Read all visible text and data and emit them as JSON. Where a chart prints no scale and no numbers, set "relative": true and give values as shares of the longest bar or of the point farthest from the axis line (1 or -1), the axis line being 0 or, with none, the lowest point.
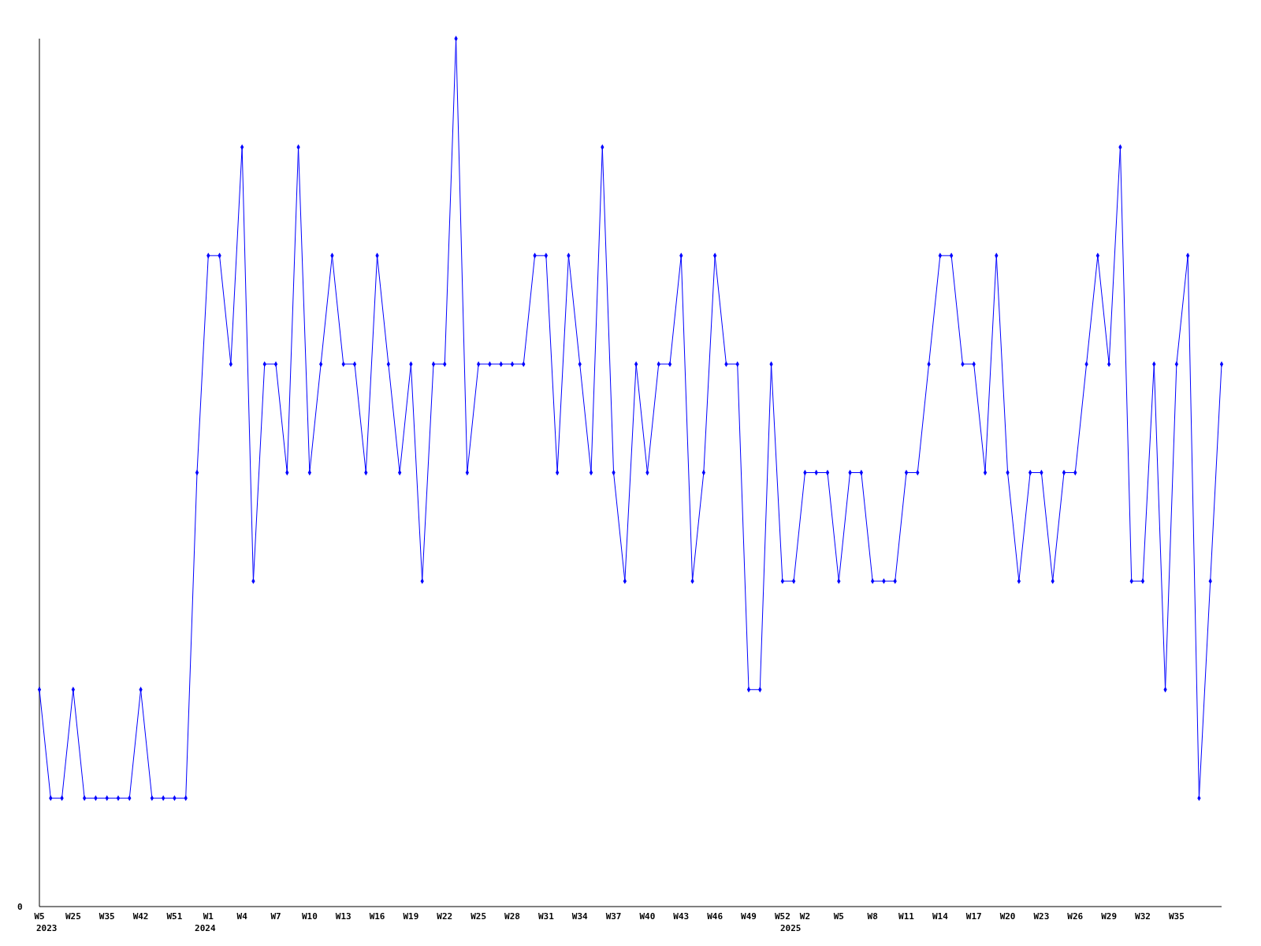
{
  "chart_data": {
    "type": "line",
    "relative": true,
    "marker": "diamond",
    "grid": false,
    "annotations": [
      "0",
      "2023",
      "2024",
      "2025"
    ],
    "categories": [
      "W5",
      null,
      null,
      "W25",
      null,
      null,
      "W35",
      null,
      null,
      "W42",
      null,
      null,
      "W51",
      null,
      null,
      "W1",
      null,
      null,
      "W4",
      null,
      null,
      "W7",
      null,
      null,
      "W10",
      null,
      null,
      "W13",
      null,
      null,
      "W16",
      null,
      null,
      "W19",
      null,
      null,
      "W22",
      null,
      null,
      "W25",
      null,
      null,
      "W28",
      null,
      null,
      "W31",
      null,
      null,
      "W34",
      null,
      null,
      "W37",
      null,
      null,
      "W40",
      null,
      null,
      "W43",
      null,
      null,
      "W46",
      null,
      null,
      "W49",
      null,
      null,
      "W52",
      null,
      "W2",
      null,
      null,
      "W5",
      null,
      null,
      "W8",
      null,
      null,
      "W11",
      null,
      null,
      "W14",
      null,
      null,
      "W17",
      null,
      null,
      "W20",
      null,
      null,
      "W23",
      null,
      null,
      "W26",
      null,
      null,
      "W29",
      null,
      null,
      "W32",
      null,
      null,
      "W35",
      null,
      null,
      null,
      null
    ],
    "series": [
      {
        "color": "#0000ff",
        "values": [
          0.25,
          0.125,
          0.125,
          0.25,
          0.125,
          0.125,
          0.125,
          0.125,
          0.125,
          0.25,
          0.125,
          0.125,
          0.125,
          0.125,
          0.5,
          0.75,
          0.75,
          0.625,
          0.875,
          0.375,
          0.625,
          0.625,
          0.5,
          0.875,
          0.5,
          0.625,
          0.75,
          0.625,
          0.625,
          0.5,
          0.75,
          0.625,
          0.5,
          0.625,
          0.375,
          0.625,
          0.625,
          1,
          0.5,
          0.625,
          0.625,
          0.625,
          0.625,
          0.625,
          0.75,
          0.75,
          0.5,
          0.75,
          0.625,
          0.5,
          0.875,
          0.5,
          0.375,
          0.625,
          0.5,
          0.625,
          0.625,
          0.75,
          0.375,
          0.5,
          0.75,
          0.625,
          0.625,
          0.25,
          0.25,
          0.625,
          0.375,
          0.375,
          0.5,
          0.5,
          0.5,
          0.375,
          0.5,
          0.5,
          0.375,
          0.375,
          0.375,
          0.5,
          0.5,
          0.625,
          0.75,
          0.75,
          0.625,
          0.625,
          0.5,
          0.75,
          0.5,
          0.375,
          0.5,
          0.5,
          0.375,
          0.5,
          0.5,
          0.625,
          0.75,
          0.625,
          0.875,
          0.375,
          0.375,
          0.625,
          0.25,
          0.625,
          0.75,
          0.125,
          0.375,
          0.625
        ]
      }
    ]
  }
}
